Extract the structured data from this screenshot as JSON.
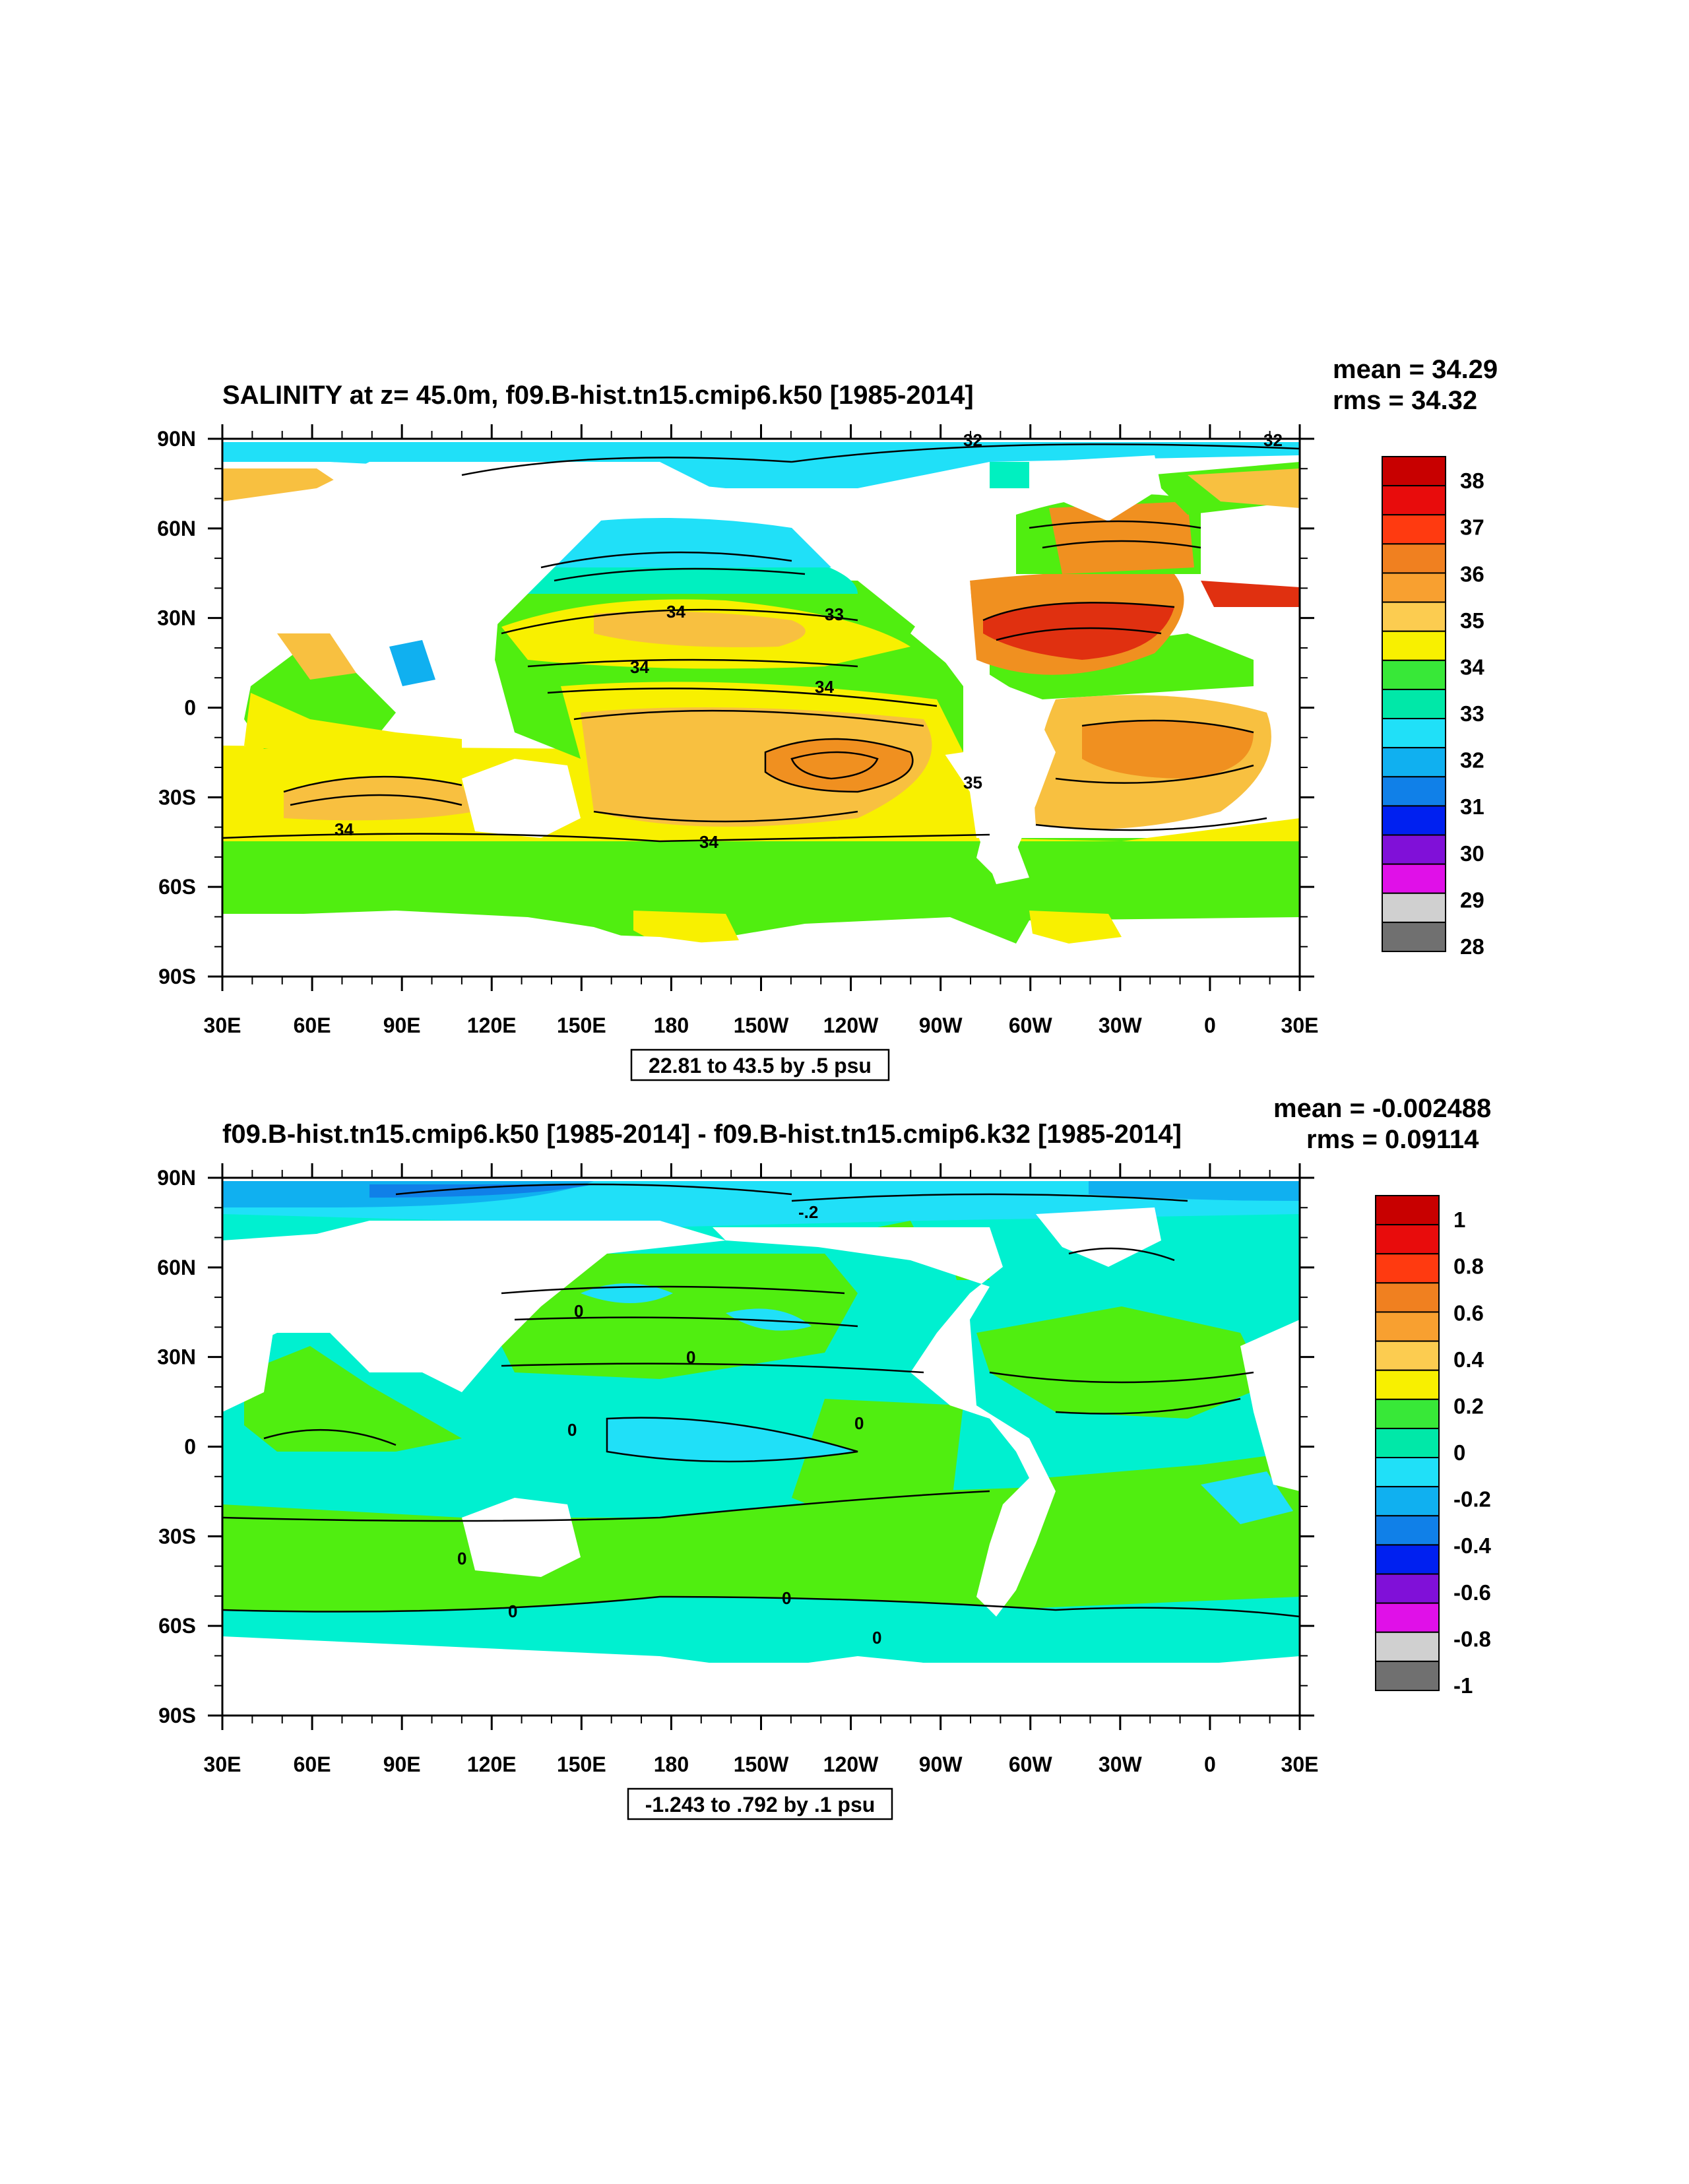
{
  "panels": [
    {
      "title": "SALINITY at z=  45.0m, f09.B-hist.tn15.cmip6.k50 [1985-2014]",
      "mean_text": "mean = 34.29",
      "rms_text": "rms = 34.32",
      "info_box": "22.81 to 43.5 by .5 psu",
      "colorbar_labels": [
        "38",
        "37",
        "36",
        "35",
        "34",
        "33",
        "32",
        "31",
        "30",
        "29",
        "28"
      ],
      "colorbar_colors": [
        "#c80000",
        "#e80c0c",
        "#ff3a10",
        "#f08020",
        "#f8a030",
        "#fccc50",
        "#f8f000",
        "#38e838",
        "#00e8a8",
        "#20e0f8",
        "#10b0f0",
        "#1080e8",
        "#0020f0",
        "#8010d8",
        "#e010e8",
        "#d0d0d0",
        "#707070"
      ],
      "contour_labels": [
        "32",
        "32",
        "34",
        "33",
        "34",
        "34",
        "35",
        "34",
        "34"
      ]
    },
    {
      "title": "f09.B-hist.tn15.cmip6.k50 [1985-2014] - f09.B-hist.tn15.cmip6.k32 [1985-2014]",
      "mean_text": "mean = -0.002488",
      "rms_text": "rms = 0.09114",
      "info_box": "-1.243 to .792 by .1 psu",
      "colorbar_labels": [
        "1",
        "0.8",
        "0.6",
        "0.4",
        "0.2",
        "0",
        "-0.2",
        "-0.4",
        "-0.6",
        "-0.8",
        "-1"
      ],
      "colorbar_colors": [
        "#c80000",
        "#e80c0c",
        "#ff3a10",
        "#f08020",
        "#f8a030",
        "#fccc50",
        "#f8f000",
        "#38e838",
        "#00e8a8",
        "#20e0f8",
        "#10b0f0",
        "#1080e8",
        "#0020f0",
        "#8010d8",
        "#e010e8",
        "#d0d0d0",
        "#707070"
      ],
      "contour_labels": [
        "-.2",
        "0",
        "0",
        "0",
        "0",
        "0",
        "0",
        "0",
        "0"
      ]
    }
  ],
  "axes": {
    "y_ticks": [
      "90N",
      "60N",
      "30N",
      "0",
      "30S",
      "60S",
      "90S"
    ],
    "x_ticks": [
      "30E",
      "60E",
      "90E",
      "120E",
      "150E",
      "180",
      "150W",
      "120W",
      "90W",
      "60W",
      "30W",
      "0",
      "30E"
    ]
  },
  "map_colors": {
    "land": "#ffffff",
    "top_fields": [
      "#50ee10",
      "#f8f000",
      "#f8c040",
      "#f09020",
      "#e03010",
      "#20e0f8",
      "#10b0f0",
      "#00f0c0"
    ],
    "bottom_fields": [
      "#50ee10",
      "#00f0d0",
      "#20e0f8",
      "#10b0f0",
      "#1080e8"
    ]
  }
}
